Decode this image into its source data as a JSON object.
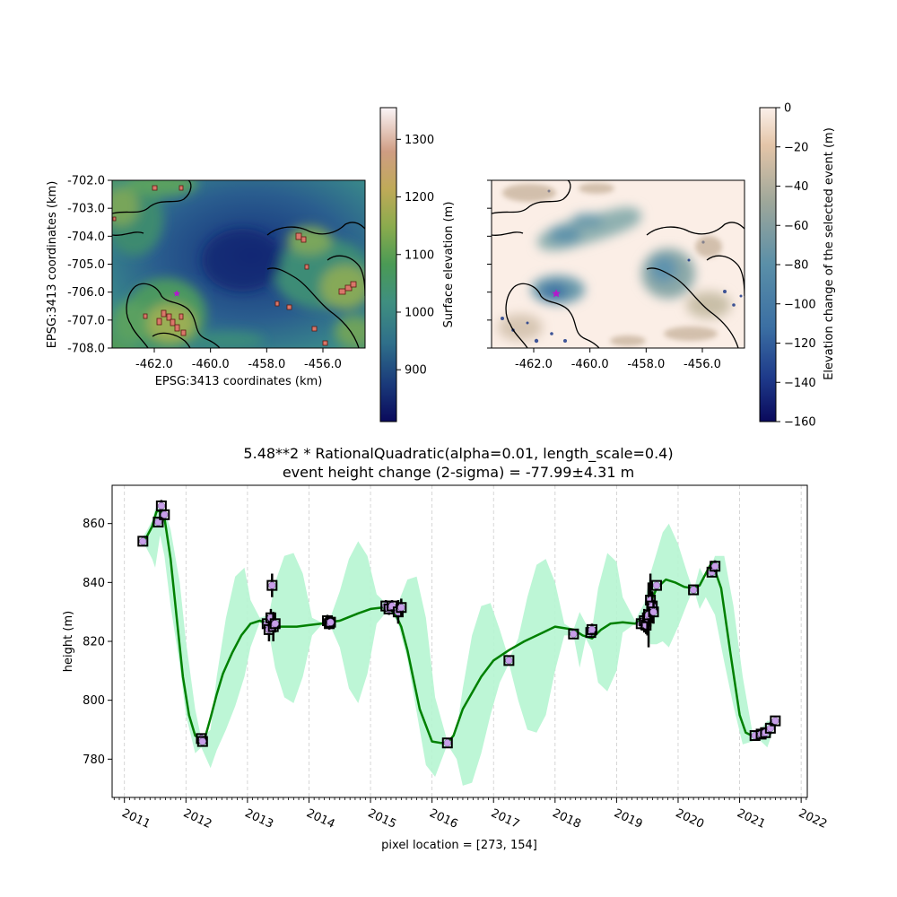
{
  "colors": {
    "gp_mean": "#008000",
    "gp_band": "#b6f5d2",
    "obs_marker_face": "#c79ee8",
    "obs_marker_edge": "#000000",
    "event_star": "#b21acc",
    "gridline": "#cccccc"
  },
  "chart_data": [
    {
      "type": "heatmap",
      "panel": "elevation-map",
      "xlabel": "EPSG:3413 coordinates (km)",
      "ylabel": "EPSG:3413 coordinates (km)",
      "xlim": [
        -463.5,
        -454.5
      ],
      "ylim": [
        -708.0,
        -702.0
      ],
      "x_ticks": [
        -462.0,
        -460.0,
        -458.0,
        -456.0
      ],
      "x_tick_labels": [
        "-462.0",
        "-460.0",
        "-458.0",
        "-456.0"
      ],
      "y_ticks": [
        -702.0,
        -703.0,
        -704.0,
        -705.0,
        -706.0,
        -707.0,
        -708.0
      ],
      "y_tick_labels": [
        "-702.0",
        "-703.0",
        "-704.0",
        "-705.0",
        "-706.0",
        "-707.0",
        "-708.0"
      ],
      "colormap": "gist_earth",
      "colorbar": {
        "label": "Surface elevation (m)",
        "range": [
          810,
          1355
        ],
        "ticks": [
          900,
          1000,
          1100,
          1200,
          1300
        ],
        "tick_labels": [
          "900",
          "1000",
          "1100",
          "1200",
          "1300"
        ]
      },
      "marker": {
        "shape": "star",
        "x": -461.2,
        "y": -706.05
      }
    },
    {
      "type": "heatmap",
      "panel": "elevation-change-map",
      "xlim": [
        -463.5,
        -454.5
      ],
      "ylim": [
        -708.0,
        -702.0
      ],
      "x_ticks": [
        -462.0,
        -460.0,
        -458.0,
        -456.0
      ],
      "x_tick_labels": [
        "-462.0",
        "-460.0",
        "-458.0",
        "-456.0"
      ],
      "colormap": "gist_earth_r",
      "colorbar": {
        "label": "Elevation change of the selected event (m)",
        "range": [
          -160,
          0
        ],
        "ticks": [
          0,
          -20,
          -40,
          -60,
          -80,
          -100,
          -120,
          -140,
          -160
        ],
        "tick_labels": [
          "0",
          "−20",
          "−40",
          "−60",
          "−80",
          "−100",
          "−120",
          "−140",
          "−160"
        ]
      },
      "marker": {
        "shape": "star",
        "x": -461.2,
        "y": -706.05
      }
    },
    {
      "type": "line",
      "panel": "timeseries",
      "title_line1": "5.48**2 * RationalQuadratic(alpha=0.01, length_scale=0.4)",
      "title_line2": "event height change (2-sigma) = -77.99±4.31 m",
      "xlabel": "pixel location = [273, 154]",
      "ylabel": "height (m)",
      "xlim": [
        2010.8,
        2022.1
      ],
      "ylim": [
        767,
        873
      ],
      "x_ticks": [
        2011,
        2012,
        2013,
        2014,
        2015,
        2016,
        2017,
        2018,
        2019,
        2020,
        2021,
        2022
      ],
      "x_tick_labels": [
        "2011",
        "2012",
        "2013",
        "2014",
        "2015",
        "2016",
        "2017",
        "2018",
        "2019",
        "2020",
        "2021",
        "2022"
      ],
      "y_ticks": [
        780,
        800,
        820,
        840,
        860
      ],
      "y_tick_labels": [
        "780",
        "800",
        "820",
        "840",
        "860"
      ],
      "grid": "vertical dashed at each year",
      "gp_mean": {
        "x": [
          2011.25,
          2011.35,
          2011.45,
          2011.52,
          2011.58,
          2011.65,
          2011.75,
          2011.85,
          2011.95,
          2012.05,
          2012.15,
          2012.25,
          2012.32,
          2012.4,
          2012.5,
          2012.6,
          2012.75,
          2012.9,
          2013.05,
          2013.2,
          2013.35,
          2013.4,
          2013.5,
          2013.6,
          2013.8,
          2014.0,
          2014.2,
          2014.33,
          2014.5,
          2014.8,
          2015.0,
          2015.2,
          2015.3,
          2015.4,
          2015.5,
          2015.6,
          2015.8,
          2016.0,
          2016.15,
          2016.25,
          2016.35,
          2016.5,
          2016.8,
          2017.0,
          2017.25,
          2017.5,
          2017.8,
          2018.0,
          2018.3,
          2018.45,
          2018.6,
          2018.75,
          2018.9,
          2019.1,
          2019.3,
          2019.45,
          2019.55,
          2019.65,
          2019.8,
          2019.95,
          2020.1,
          2020.25,
          2020.35,
          2020.45,
          2020.55,
          2020.7,
          2020.85,
          2021.0,
          2021.1,
          2021.2,
          2021.3,
          2021.45,
          2021.6
        ],
        "y": [
          854,
          855,
          859,
          864,
          864.5,
          862,
          848,
          828,
          808,
          795,
          788,
          786.5,
          788,
          794,
          802,
          809,
          816,
          822,
          826,
          827,
          826,
          825.5,
          825,
          825,
          825,
          825.5,
          826,
          826.5,
          827,
          829.5,
          831,
          831.5,
          831,
          829.5,
          825,
          817,
          797,
          786,
          785.5,
          785.5,
          788,
          797,
          808,
          813.5,
          817,
          820,
          823,
          825,
          824,
          822,
          821,
          824,
          826,
          826.5,
          826,
          828,
          833,
          838,
          841,
          840,
          838.5,
          838,
          839,
          843,
          847,
          838,
          816,
          795,
          789,
          788,
          788.5,
          790,
          793
        ]
      },
      "gp_band": {
        "x": [
          2011.25,
          2011.35,
          2011.45,
          2011.5,
          2011.58,
          2011.65,
          2011.75,
          2011.9,
          2012.0,
          2012.15,
          2012.25,
          2012.4,
          2012.5,
          2012.65,
          2012.8,
          2012.95,
          2013.05,
          2013.2,
          2013.35,
          2013.45,
          2013.6,
          2013.75,
          2013.9,
          2014.05,
          2014.2,
          2014.33,
          2014.5,
          2014.65,
          2014.8,
          2014.95,
          2015.1,
          2015.3,
          2015.45,
          2015.6,
          2015.75,
          2015.9,
          2016.05,
          2016.25,
          2016.4,
          2016.5,
          2016.65,
          2016.8,
          2016.95,
          2017.1,
          2017.25,
          2017.4,
          2017.55,
          2017.7,
          2017.85,
          2018.0,
          2018.15,
          2018.3,
          2018.4,
          2018.5,
          2018.6,
          2018.7,
          2018.85,
          2019.0,
          2019.1,
          2019.3,
          2019.45,
          2019.55,
          2019.65,
          2019.75,
          2019.85,
          2020.0,
          2020.15,
          2020.25,
          2020.35,
          2020.45,
          2020.6,
          2020.75,
          2020.9,
          2021.05,
          2021.2,
          2021.3,
          2021.45,
          2021.6
        ],
        "upper": [
          854,
          857,
          861,
          865,
          866,
          865,
          858,
          840,
          820,
          797,
          787,
          790,
          808,
          828,
          842,
          845,
          834,
          828,
          829,
          840,
          849,
          850,
          843,
          828,
          826.5,
          827,
          837,
          848,
          854,
          849,
          836,
          832,
          833,
          841,
          842,
          828,
          801,
          786,
          790,
          804,
          822,
          832,
          833,
          824,
          814,
          821,
          835,
          846,
          848,
          840,
          826,
          824,
          830,
          826,
          824,
          838,
          850,
          847,
          835,
          827,
          833,
          843,
          850,
          857,
          860,
          853,
          843,
          837,
          845,
          841,
          849,
          849,
          832,
          808,
          790,
          789,
          793,
          793
        ]
      },
      "gp_band_lower": [
        854,
        852,
        848,
        845,
        856,
        849,
        832,
        812,
        795,
        782,
        784,
        777,
        783,
        790,
        798,
        808,
        818,
        826.5,
        823,
        811,
        801,
        799,
        808,
        822,
        825.5,
        826,
        818,
        804,
        799,
        809,
        826,
        831,
        826,
        814,
        796,
        778,
        774,
        785,
        780,
        771,
        772,
        782,
        795,
        806,
        812.5,
        800,
        790,
        789,
        795,
        810,
        822,
        822,
        811,
        821,
        817,
        806,
        803,
        810,
        823,
        826,
        825,
        819,
        819,
        820,
        818,
        825,
        833,
        838,
        831,
        835,
        829,
        813,
        798,
        785,
        786,
        787,
        784,
        793
      ],
      "observations": {
        "x": [
          2011.3,
          2011.55,
          2011.6,
          2011.65,
          2012.25,
          2012.27,
          2013.32,
          2013.35,
          2013.38,
          2013.4,
          2013.42,
          2013.45,
          2014.3,
          2014.33,
          2014.35,
          2015.25,
          2015.3,
          2015.35,
          2015.45,
          2015.5,
          2016.25,
          2017.25,
          2018.3,
          2018.58,
          2018.6,
          2019.4,
          2019.45,
          2019.48,
          2019.5,
          2019.52,
          2019.55,
          2019.58,
          2019.6,
          2019.65,
          2020.25,
          2020.55,
          2020.6,
          2021.25,
          2021.35,
          2021.42,
          2021.5,
          2021.58
        ],
        "y": [
          854,
          860.5,
          866,
          863,
          787,
          786,
          826,
          824,
          828,
          839,
          825,
          826,
          827,
          826,
          826.5,
          832,
          831,
          832,
          830,
          831.5,
          785.5,
          813.5,
          822.5,
          823,
          824,
          826,
          827,
          825.5,
          828,
          829,
          834,
          832,
          830,
          839,
          837.5,
          843.5,
          845.5,
          788,
          788.5,
          789,
          790.5,
          793
        ],
        "err": [
          1,
          1,
          2,
          1,
          1.5,
          1,
          3,
          4,
          3,
          4,
          5,
          3,
          2,
          2,
          2,
          2,
          2,
          2,
          4,
          3,
          1,
          1,
          1,
          1.5,
          2,
          2,
          4,
          3,
          6,
          11,
          9,
          5,
          4,
          1,
          1,
          1.5,
          2,
          1,
          1,
          1,
          2,
          1
        ]
      }
    }
  ]
}
